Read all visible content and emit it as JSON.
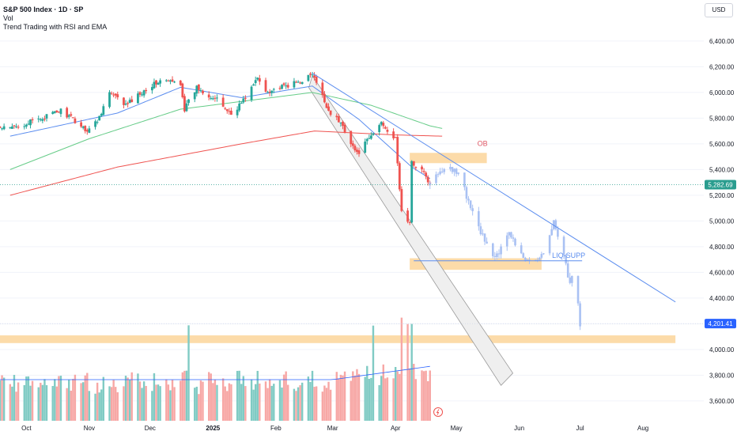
{
  "header": {
    "title": "S&P 500 Index · 1D · SP",
    "volume_label": "Vol",
    "indicator": "Trend Trading with RSI and EMA"
  },
  "currency": "USD",
  "colors": {
    "up": "#26a69a",
    "down": "#ef5350",
    "up_vol": "#80cbc4",
    "down_vol": "#f7a7a5",
    "ema_blue": "#5b8def",
    "ema_green": "#66cc88",
    "ema_red": "#ef5350",
    "zone": "#fbd59a",
    "projection": "#a9c1f3",
    "price_badge": "#2a9d8f",
    "proj_badge": "#2962ff"
  },
  "chart_data": {
    "type": "candlestick",
    "symbol": "S&P 500 Index",
    "interval": "1D",
    "y_ticks": [
      3600,
      3800,
      4000,
      4200,
      4400,
      4600,
      4800,
      5000,
      5200,
      5400,
      5600,
      5800,
      6000,
      6200,
      6400
    ],
    "y_tick_labels": [
      "3,600.00",
      "3,800.00",
      "4,000.00",
      "4,200.00",
      "4,400.00",
      "4,600.00",
      "4,800.00",
      "5,000.00",
      "5,200.00",
      "5,400.00",
      "5,600.00",
      "5,800.00",
      "6,000.00",
      "6,200.00",
      "6,400.00"
    ],
    "ylim": [
      3540,
      6550
    ],
    "x_labels": [
      "Oct",
      "Nov",
      "Dec",
      "2025",
      "Feb",
      "Mar",
      "Apr",
      "May",
      "Jun",
      "Jul",
      "Aug"
    ],
    "x_label_dates": [
      "2024-10-01",
      "2024-11-01",
      "2024-12-01",
      "2025-01-01",
      "2025-02-01",
      "2025-03-01",
      "2025-04-01",
      "2025-05-01",
      "2025-06-01",
      "2025-07-01",
      "2025-08-01"
    ],
    "last_price": 5282.69,
    "last_price_label": "5,282.69",
    "projection_target": 4201.41,
    "projection_target_label": "4,201.41",
    "anchor_closes": [
      [
        "2024-09-23",
        5720
      ],
      [
        "2024-10-07",
        5790
      ],
      [
        "2024-10-18",
        5860
      ],
      [
        "2024-10-31",
        5705
      ],
      [
        "2024-11-05",
        5780
      ],
      [
        "2024-11-11",
        6000
      ],
      [
        "2024-11-19",
        5900
      ],
      [
        "2024-11-29",
        6030
      ],
      [
        "2024-12-06",
        6090
      ],
      [
        "2024-12-16",
        6074
      ],
      [
        "2024-12-18",
        5870
      ],
      [
        "2024-12-24",
        6040
      ],
      [
        "2025-01-03",
        5940
      ],
      [
        "2025-01-10",
        5830
      ],
      [
        "2025-01-16",
        5940
      ],
      [
        "2025-01-23",
        6110
      ],
      [
        "2025-01-27",
        6010
      ],
      [
        "2025-02-04",
        6040
      ],
      [
        "2025-02-12",
        6080
      ],
      [
        "2025-02-19",
        6140
      ],
      [
        "2025-02-27",
        5860
      ],
      [
        "2025-03-06",
        5740
      ],
      [
        "2025-03-13",
        5520
      ],
      [
        "2025-03-20",
        5660
      ],
      [
        "2025-03-25",
        5770
      ],
      [
        "2025-04-01",
        5630
      ],
      [
        "2025-04-04",
        5070
      ],
      [
        "2025-04-08",
        4980
      ],
      [
        "2025-04-09",
        5450
      ],
      [
        "2025-04-14",
        5400
      ],
      [
        "2025-04-18",
        5282
      ]
    ],
    "projection_path": [
      [
        "2025-04-18",
        5282
      ],
      [
        "2025-04-25",
        5420
      ],
      [
        "2025-05-02",
        5380
      ],
      [
        "2025-05-08",
        5100
      ],
      [
        "2025-05-14",
        4880
      ],
      [
        "2025-05-20",
        4700
      ],
      [
        "2025-05-27",
        4900
      ],
      [
        "2025-06-03",
        4700
      ],
      [
        "2025-06-12",
        4720
      ],
      [
        "2025-06-18",
        5000
      ],
      [
        "2025-06-23",
        4750
      ],
      [
        "2025-06-26",
        4500
      ],
      [
        "2025-06-28",
        4620
      ],
      [
        "2025-07-01",
        4201
      ]
    ],
    "ema_fast_anchors": [
      [
        "2024-09-23",
        5660
      ],
      [
        "2024-11-15",
        5840
      ],
      [
        "2024-12-16",
        6040
      ],
      [
        "2025-01-15",
        5960
      ],
      [
        "2025-02-19",
        6050
      ],
      [
        "2025-03-14",
        5790
      ],
      [
        "2025-04-09",
        5420
      ],
      [
        "2025-04-18",
        5330
      ]
    ],
    "ema_mid_anchors": [
      [
        "2024-09-23",
        5400
      ],
      [
        "2024-11-01",
        5640
      ],
      [
        "2024-12-16",
        5870
      ],
      [
        "2025-02-19",
        6000
      ],
      [
        "2025-03-20",
        5900
      ],
      [
        "2025-04-18",
        5740
      ],
      [
        "2025-04-24",
        5720
      ]
    ],
    "ema_slow_anchors": [
      [
        "2024-09-23",
        5200
      ],
      [
        "2024-11-15",
        5420
      ],
      [
        "2025-01-15",
        5600
      ],
      [
        "2025-02-20",
        5700
      ],
      [
        "2025-03-31",
        5670
      ],
      [
        "2025-04-24",
        5660
      ]
    ],
    "volume": {
      "label": "Vol",
      "spike_dates": [
        "2024-12-20",
        "2025-03-21",
        "2025-04-04",
        "2025-04-07",
        "2025-04-09"
      ]
    },
    "trendlines": [
      {
        "name": "resistance",
        "from": [
          "2025-02-19",
          6150
        ],
        "to": [
          "2025-08-17",
          4370
        ]
      }
    ],
    "channel": {
      "from": [
        "2025-02-19",
        6130
      ],
      "to": [
        "2025-05-23",
        3770
      ],
      "width_value": 80
    },
    "zones": [
      {
        "label": "OB",
        "from": "2025-04-08",
        "to": "2025-05-16",
        "low": 5450,
        "high": 5530
      },
      {
        "label": "",
        "from": "2025-04-08",
        "to": "2025-06-12",
        "low": 4620,
        "high": 4710
      },
      {
        "label": "",
        "from": "2024-09-18",
        "to": "2025-08-17",
        "low": 4050,
        "high": 4110
      }
    ],
    "levels": [
      {
        "label": "LIQ-SUPP",
        "value": 4690,
        "from": "2025-04-10",
        "to": "2025-07-02"
      },
      {
        "label": "",
        "value": 5282.69,
        "dotted": true
      }
    ]
  }
}
